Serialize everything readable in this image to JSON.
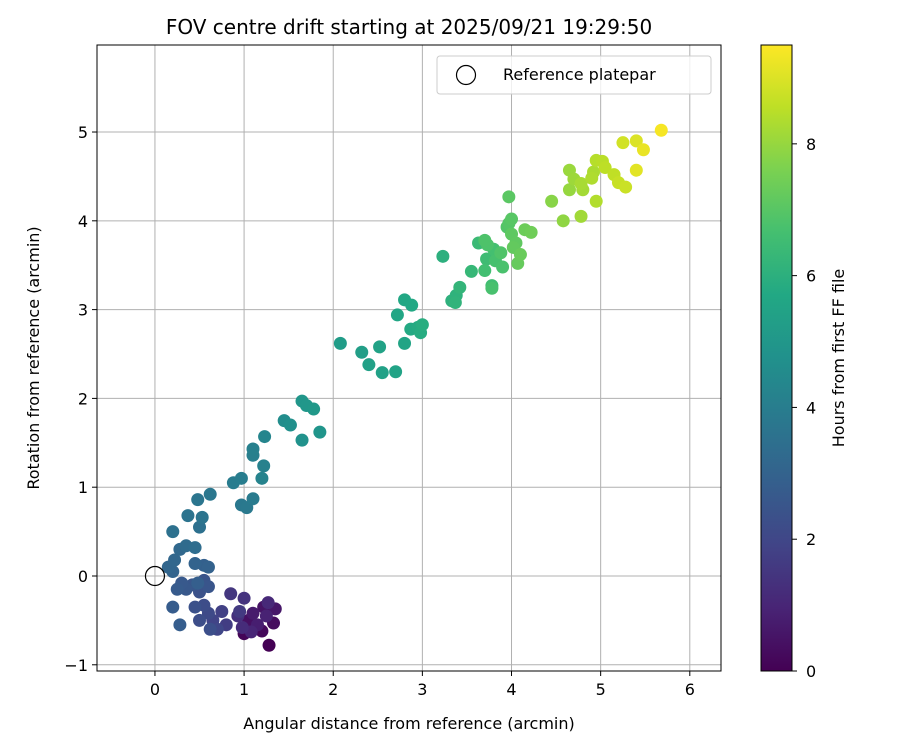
{
  "chart_data": {
    "type": "scatter",
    "title": "FOV centre drift starting at 2025/09/21 19:29:50",
    "xlabel": "Angular distance from reference (arcmin)",
    "ylabel": "Rotation from reference (arcmin)",
    "xlim": [
      -0.65,
      6.35
    ],
    "ylim": [
      -1.07,
      5.98
    ],
    "xticks": [
      0,
      1,
      2,
      3,
      4,
      5,
      6
    ],
    "xtick_labels": [
      "0",
      "1",
      "2",
      "3",
      "4",
      "5",
      "6"
    ],
    "yticks": [
      -1,
      0,
      1,
      2,
      3,
      4,
      5
    ],
    "ytick_labels": [
      "−1",
      "0",
      "1",
      "2",
      "3",
      "4",
      "5"
    ],
    "grid": true,
    "legend": {
      "label": "Reference platepar",
      "location": "top-right"
    },
    "reference_point": {
      "x": 0,
      "y": 0
    },
    "colorbar": {
      "label": "Hours from first FF file",
      "colormap": "viridis",
      "range": [
        0,
        9.5
      ],
      "ticks": [
        0,
        2,
        4,
        6,
        8
      ],
      "tick_labels": [
        "0",
        "2",
        "4",
        "6",
        "8"
      ]
    },
    "points": [
      {
        "x": 1.28,
        "y": -0.78,
        "h": 0.0
      },
      {
        "x": 1.0,
        "y": -0.65,
        "h": 0.1
      },
      {
        "x": 1.2,
        "y": -0.62,
        "h": 0.2
      },
      {
        "x": 1.33,
        "y": -0.53,
        "h": 0.3
      },
      {
        "x": 1.05,
        "y": -0.5,
        "h": 0.4
      },
      {
        "x": 1.22,
        "y": -0.35,
        "h": 0.5
      },
      {
        "x": 1.35,
        "y": -0.37,
        "h": 0.6
      },
      {
        "x": 1.1,
        "y": -0.42,
        "h": 0.7
      },
      {
        "x": 1.15,
        "y": -0.55,
        "h": 0.8
      },
      {
        "x": 1.25,
        "y": -0.45,
        "h": 0.9
      },
      {
        "x": 1.08,
        "y": -0.63,
        "h": 1.0
      },
      {
        "x": 1.27,
        "y": -0.3,
        "h": 1.1
      },
      {
        "x": 0.98,
        "y": -0.58,
        "h": 1.2
      },
      {
        "x": 0.93,
        "y": -0.45,
        "h": 1.3
      },
      {
        "x": 1.0,
        "y": -0.25,
        "h": 1.4
      },
      {
        "x": 0.85,
        "y": -0.2,
        "h": 1.5
      },
      {
        "x": 0.95,
        "y": -0.4,
        "h": 1.6
      },
      {
        "x": 0.8,
        "y": -0.55,
        "h": 1.7
      },
      {
        "x": 0.75,
        "y": -0.4,
        "h": 1.8
      },
      {
        "x": 0.65,
        "y": -0.5,
        "h": 1.9
      },
      {
        "x": 0.7,
        "y": -0.6,
        "h": 2.0
      },
      {
        "x": 0.6,
        "y": -0.42,
        "h": 2.1
      },
      {
        "x": 0.55,
        "y": -0.33,
        "h": 2.2
      },
      {
        "x": 0.5,
        "y": -0.5,
        "h": 2.25
      },
      {
        "x": 0.62,
        "y": -0.6,
        "h": 2.3
      },
      {
        "x": 0.45,
        "y": -0.35,
        "h": 2.35
      },
      {
        "x": 0.5,
        "y": -0.18,
        "h": 2.4
      },
      {
        "x": 0.55,
        "y": -0.05,
        "h": 2.45
      },
      {
        "x": 0.6,
        "y": -0.12,
        "h": 2.5
      },
      {
        "x": 0.42,
        "y": -0.1,
        "h": 2.55
      },
      {
        "x": 0.35,
        "y": -0.15,
        "h": 2.6
      },
      {
        "x": 0.3,
        "y": -0.08,
        "h": 2.65
      },
      {
        "x": 0.25,
        "y": -0.15,
        "h": 2.7
      },
      {
        "x": 0.2,
        "y": -0.35,
        "h": 2.75
      },
      {
        "x": 0.28,
        "y": -0.55,
        "h": 2.8
      },
      {
        "x": 0.48,
        "y": -0.08,
        "h": 2.85
      },
      {
        "x": 0.55,
        "y": 0.12,
        "h": 2.9
      },
      {
        "x": 0.6,
        "y": 0.1,
        "h": 2.95
      },
      {
        "x": 0.45,
        "y": 0.14,
        "h": 3.0
      },
      {
        "x": 0.2,
        "y": 0.05,
        "h": 3.05
      },
      {
        "x": 0.15,
        "y": 0.1,
        "h": 3.1
      },
      {
        "x": 0.22,
        "y": 0.18,
        "h": 3.15
      },
      {
        "x": 0.28,
        "y": 0.3,
        "h": 3.2
      },
      {
        "x": 0.35,
        "y": 0.34,
        "h": 3.3
      },
      {
        "x": 0.45,
        "y": 0.32,
        "h": 3.4
      },
      {
        "x": 0.5,
        "y": 0.55,
        "h": 3.5
      },
      {
        "x": 0.2,
        "y": 0.5,
        "h": 3.55
      },
      {
        "x": 0.37,
        "y": 0.68,
        "h": 3.6
      },
      {
        "x": 0.53,
        "y": 0.66,
        "h": 3.65
      },
      {
        "x": 0.48,
        "y": 0.86,
        "h": 3.7
      },
      {
        "x": 0.62,
        "y": 0.92,
        "h": 3.75
      },
      {
        "x": 0.97,
        "y": 0.8,
        "h": 3.8
      },
      {
        "x": 1.03,
        "y": 0.77,
        "h": 3.85
      },
      {
        "x": 1.1,
        "y": 0.87,
        "h": 3.9
      },
      {
        "x": 0.88,
        "y": 1.05,
        "h": 3.95
      },
      {
        "x": 0.97,
        "y": 1.1,
        "h": 4.0
      },
      {
        "x": 1.1,
        "y": 1.36,
        "h": 4.05
      },
      {
        "x": 1.1,
        "y": 1.43,
        "h": 4.1
      },
      {
        "x": 1.22,
        "y": 1.24,
        "h": 4.15
      },
      {
        "x": 1.2,
        "y": 1.1,
        "h": 4.2
      },
      {
        "x": 1.23,
        "y": 1.57,
        "h": 4.3
      },
      {
        "x": 1.45,
        "y": 1.75,
        "h": 4.6
      },
      {
        "x": 1.52,
        "y": 1.7,
        "h": 4.7
      },
      {
        "x": 1.65,
        "y": 1.53,
        "h": 4.8
      },
      {
        "x": 1.85,
        "y": 1.62,
        "h": 4.9
      },
      {
        "x": 1.65,
        "y": 1.97,
        "h": 4.95
      },
      {
        "x": 1.7,
        "y": 1.92,
        "h": 5.0
      },
      {
        "x": 1.78,
        "y": 1.88,
        "h": 5.05
      },
      {
        "x": 2.08,
        "y": 2.62,
        "h": 5.2
      },
      {
        "x": 2.32,
        "y": 2.52,
        "h": 5.3
      },
      {
        "x": 2.4,
        "y": 2.38,
        "h": 5.35
      },
      {
        "x": 2.55,
        "y": 2.29,
        "h": 5.4
      },
      {
        "x": 2.52,
        "y": 2.58,
        "h": 5.45
      },
      {
        "x": 2.7,
        "y": 2.3,
        "h": 5.5
      },
      {
        "x": 2.8,
        "y": 2.62,
        "h": 5.55
      },
      {
        "x": 2.72,
        "y": 2.94,
        "h": 5.6
      },
      {
        "x": 2.8,
        "y": 3.11,
        "h": 5.65
      },
      {
        "x": 2.88,
        "y": 3.05,
        "h": 5.7
      },
      {
        "x": 2.87,
        "y": 2.78,
        "h": 5.75
      },
      {
        "x": 2.95,
        "y": 2.8,
        "h": 5.8
      },
      {
        "x": 2.98,
        "y": 2.74,
        "h": 5.85
      },
      {
        "x": 3.0,
        "y": 2.83,
        "h": 5.9
      },
      {
        "x": 3.23,
        "y": 3.6,
        "h": 6.0
      },
      {
        "x": 3.33,
        "y": 3.1,
        "h": 6.05
      },
      {
        "x": 3.38,
        "y": 3.16,
        "h": 6.1
      },
      {
        "x": 3.37,
        "y": 3.08,
        "h": 6.15
      },
      {
        "x": 3.42,
        "y": 3.25,
        "h": 6.2
      },
      {
        "x": 3.55,
        "y": 3.43,
        "h": 6.3
      },
      {
        "x": 3.63,
        "y": 3.75,
        "h": 6.4
      },
      {
        "x": 3.72,
        "y": 3.57,
        "h": 6.5
      },
      {
        "x": 3.78,
        "y": 3.27,
        "h": 6.55
      },
      {
        "x": 3.7,
        "y": 3.44,
        "h": 6.6
      },
      {
        "x": 3.8,
        "y": 3.68,
        "h": 6.65
      },
      {
        "x": 3.82,
        "y": 3.55,
        "h": 6.7
      },
      {
        "x": 3.78,
        "y": 3.24,
        "h": 6.72
      },
      {
        "x": 3.9,
        "y": 3.48,
        "h": 6.75
      },
      {
        "x": 3.73,
        "y": 3.73,
        "h": 6.8
      },
      {
        "x": 3.7,
        "y": 3.78,
        "h": 6.83
      },
      {
        "x": 3.88,
        "y": 3.64,
        "h": 6.86
      },
      {
        "x": 3.95,
        "y": 3.93,
        "h": 6.9
      },
      {
        "x": 3.97,
        "y": 3.97,
        "h": 6.95
      },
      {
        "x": 4.0,
        "y": 4.02,
        "h": 7.0
      },
      {
        "x": 3.97,
        "y": 4.27,
        "h": 7.05
      },
      {
        "x": 4.0,
        "y": 3.85,
        "h": 7.1
      },
      {
        "x": 4.05,
        "y": 3.75,
        "h": 7.15
      },
      {
        "x": 4.02,
        "y": 3.7,
        "h": 7.2
      },
      {
        "x": 4.07,
        "y": 3.52,
        "h": 7.25
      },
      {
        "x": 4.1,
        "y": 3.62,
        "h": 7.3
      },
      {
        "x": 4.15,
        "y": 3.9,
        "h": 7.35
      },
      {
        "x": 4.22,
        "y": 3.87,
        "h": 7.4
      },
      {
        "x": 4.45,
        "y": 4.22,
        "h": 7.8
      },
      {
        "x": 4.58,
        "y": 4.0,
        "h": 7.9
      },
      {
        "x": 4.65,
        "y": 4.35,
        "h": 8.0
      },
      {
        "x": 4.65,
        "y": 4.57,
        "h": 8.05
      },
      {
        "x": 4.7,
        "y": 4.47,
        "h": 8.1
      },
      {
        "x": 4.78,
        "y": 4.05,
        "h": 8.15
      },
      {
        "x": 4.8,
        "y": 4.35,
        "h": 8.2
      },
      {
        "x": 4.78,
        "y": 4.42,
        "h": 8.25
      },
      {
        "x": 4.92,
        "y": 4.55,
        "h": 8.3
      },
      {
        "x": 4.9,
        "y": 4.48,
        "h": 8.35
      },
      {
        "x": 4.95,
        "y": 4.22,
        "h": 8.4
      },
      {
        "x": 4.95,
        "y": 4.68,
        "h": 8.45
      },
      {
        "x": 5.02,
        "y": 4.67,
        "h": 8.5
      },
      {
        "x": 5.05,
        "y": 4.6,
        "h": 8.55
      },
      {
        "x": 5.15,
        "y": 4.52,
        "h": 8.6
      },
      {
        "x": 5.2,
        "y": 4.43,
        "h": 8.7
      },
      {
        "x": 5.28,
        "y": 4.38,
        "h": 8.75
      },
      {
        "x": 5.25,
        "y": 4.88,
        "h": 8.85
      },
      {
        "x": 5.4,
        "y": 4.9,
        "h": 9.0
      },
      {
        "x": 5.4,
        "y": 4.57,
        "h": 9.1
      },
      {
        "x": 5.48,
        "y": 4.8,
        "h": 9.2
      },
      {
        "x": 5.68,
        "y": 5.02,
        "h": 9.4
      }
    ]
  }
}
